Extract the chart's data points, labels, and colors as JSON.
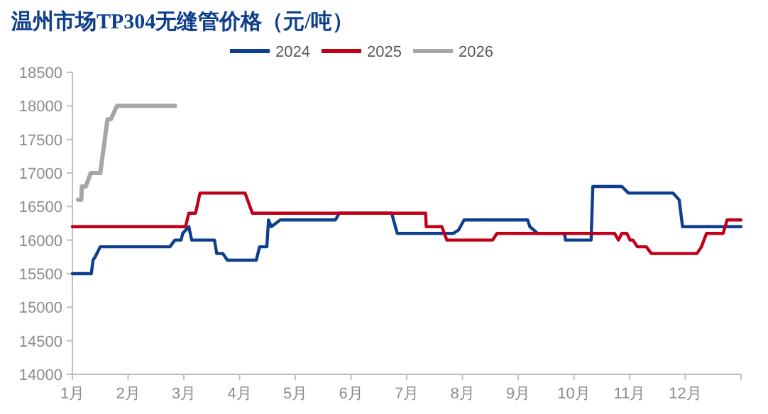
{
  "chart_data": {
    "type": "line",
    "title": "温州市场TP304无缝管价格（元/吨）",
    "legend": "top",
    "grid": false,
    "marker": "none",
    "line_style": "solid",
    "xlim": [
      1,
      13
    ],
    "ylim": [
      14000,
      18500
    ],
    "xticks": [
      {
        "value": 1,
        "label": "1月"
      },
      {
        "value": 2,
        "label": "2月"
      },
      {
        "value": 3,
        "label": "3月"
      },
      {
        "value": 4,
        "label": "4月"
      },
      {
        "value": 5,
        "label": "5月"
      },
      {
        "value": 6,
        "label": "6月"
      },
      {
        "value": 7,
        "label": "7月"
      },
      {
        "value": 8,
        "label": "8月"
      },
      {
        "value": 9,
        "label": "9月"
      },
      {
        "value": 10,
        "label": "10月"
      },
      {
        "value": 11,
        "label": "11月"
      },
      {
        "value": 12,
        "label": "12月"
      },
      {
        "value": 13,
        "label": null
      }
    ],
    "yticks": [
      14000,
      14500,
      15000,
      15500,
      16000,
      16500,
      17000,
      17500,
      18000,
      18500
    ],
    "series": [
      {
        "name": "2024",
        "color": "#0e3f8c",
        "x": [
          1,
          1.34,
          1.37,
          1.41,
          1.5,
          2.75,
          2.84,
          2.95,
          2.98,
          3.09,
          3.14,
          3.55,
          3.59,
          3.7,
          3.78,
          4.3,
          4.36,
          4.49,
          4.52,
          4.57,
          4.73,
          5.72,
          5.79,
          6.73,
          6.83,
          7.84,
          7.93,
          8.03,
          9.17,
          9.21,
          9.35,
          9.83,
          9.85,
          10.31,
          10.34,
          10.86,
          10.98,
          11.78,
          11.89,
          11.95,
          13
        ],
        "values": [
          15500,
          15500,
          15700,
          15750,
          15900,
          15900,
          16000,
          16000,
          16100,
          16200,
          16000,
          16000,
          15800,
          15800,
          15700,
          15700,
          15900,
          15900,
          16300,
          16200,
          16300,
          16300,
          16400,
          16400,
          16100,
          16100,
          16150,
          16300,
          16300,
          16200,
          16100,
          16100,
          16000,
          16000,
          16800,
          16800,
          16700,
          16700,
          16600,
          16200,
          16200
        ]
      },
      {
        "name": "2025",
        "color": "#c00018",
        "x": [
          1,
          3.03,
          3.09,
          3.21,
          3.29,
          4.1,
          4.23,
          7.34,
          7.35,
          7.63,
          7.72,
          8.54,
          8.62,
          10.73,
          10.8,
          10.86,
          10.95,
          11.01,
          11.06,
          11.14,
          11.3,
          11.39,
          12.21,
          12.29,
          12.38,
          12.68,
          12.75,
          13
        ],
        "values": [
          16200,
          16200,
          16400,
          16400,
          16700,
          16700,
          16400,
          16400,
          16200,
          16200,
          16000,
          16000,
          16100,
          16100,
          16000,
          16100,
          16100,
          16000,
          16000,
          15900,
          15900,
          15800,
          15800,
          15900,
          16100,
          16100,
          16300,
          16300
        ]
      },
      {
        "name": "2026",
        "color": "#a6a6a6",
        "x": [
          1.1,
          1.16,
          1.17,
          1.24,
          1.33,
          1.5,
          1.63,
          1.69,
          1.8,
          2.84
        ],
        "values": [
          16600,
          16600,
          16800,
          16800,
          17000,
          17000,
          17800,
          17800,
          18000,
          18000
        ]
      }
    ]
  }
}
